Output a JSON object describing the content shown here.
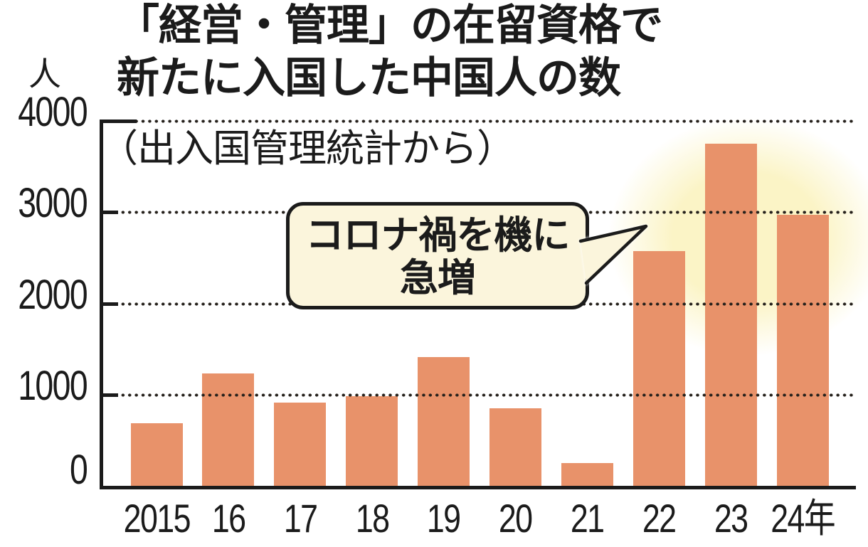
{
  "chart_data": {
    "type": "bar",
    "title_lines": [
      "「経営・管理」の在留資格で",
      "新たに入国した中国人の数"
    ],
    "subtitle": "（出入国管理統計から）",
    "y_unit": "人",
    "categories": [
      "2015",
      "16",
      "17",
      "18",
      "19",
      "20",
      "21",
      "22",
      "23",
      "24年"
    ],
    "values": [
      690,
      1230,
      910,
      980,
      1410,
      850,
      250,
      2570,
      3750,
      2970
    ],
    "ylim": [
      0,
      4000
    ],
    "yticks": [
      4000,
      3000,
      2000,
      1000,
      0
    ],
    "grid": "horizontal-dotted",
    "legend_position": "none",
    "annotation": {
      "lines": [
        "コロナ禍を機に",
        "急増"
      ],
      "target_category": "22"
    },
    "highlight": {
      "target_categories": [
        "22",
        "23",
        "24年"
      ],
      "style": "soft-yellow-glow"
    }
  },
  "colors": {
    "bar": "#E8926A",
    "ink": "#1B1B1B",
    "glow": "#FBF4C6",
    "callout_bg": "#FBF5DC",
    "background": "#FFFFFF"
  }
}
